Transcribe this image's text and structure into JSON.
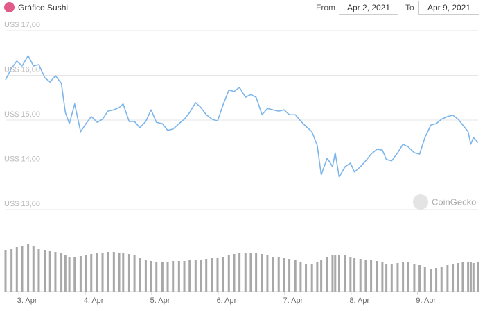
{
  "header": {
    "title": "Gráfico Sushi",
    "from_label": "From",
    "from": "Apr 2, 2021",
    "to_label": "To",
    "to": "Apr 9, 2021"
  },
  "chart_data": {
    "type": "line",
    "watermark": "CoinGecko",
    "x": [
      2.8,
      2.89,
      2.97,
      3.05,
      3.14,
      3.22,
      3.3,
      3.39,
      3.47,
      3.55,
      3.64,
      3.7,
      3.76,
      3.84,
      3.93,
      4.01,
      4.09,
      4.18,
      4.26,
      4.34,
      4.43,
      4.51,
      4.57,
      4.66,
      4.74,
      4.82,
      4.91,
      4.99,
      5.07,
      5.16,
      5.24,
      5.32,
      5.41,
      5.49,
      5.57,
      5.66,
      5.74,
      5.82,
      5.91,
      5.99,
      6.07,
      6.16,
      6.24,
      6.32,
      6.41,
      6.49,
      6.57,
      6.66,
      6.74,
      6.82,
      6.91,
      6.99,
      7.07,
      7.16,
      7.24,
      7.32,
      7.41,
      7.49,
      7.55,
      7.64,
      7.72,
      7.76,
      7.82,
      7.91,
      7.99,
      8.05,
      8.14,
      8.22,
      8.3,
      8.39,
      8.47,
      8.53,
      8.61,
      8.7,
      8.78,
      8.86,
      8.95,
      9.03,
      9.11,
      9.2,
      9.28,
      9.36,
      9.45,
      9.53,
      9.61,
      9.68,
      9.76,
      9.8,
      9.84,
      9.91
    ],
    "series": [
      {
        "color": "#7cb5ec",
        "values": [
          15.9,
          16.16,
          16.32,
          16.21,
          16.44,
          16.21,
          16.24,
          15.95,
          15.85,
          15.99,
          15.82,
          15.17,
          14.92,
          15.36,
          14.74,
          14.92,
          15.08,
          14.95,
          15.02,
          15.2,
          15.23,
          15.28,
          15.36,
          14.97,
          14.97,
          14.83,
          14.97,
          15.23,
          14.95,
          14.92,
          14.77,
          14.8,
          14.92,
          15.02,
          15.17,
          15.39,
          15.28,
          15.12,
          15.02,
          14.98,
          15.33,
          15.67,
          15.64,
          15.73,
          15.51,
          15.57,
          15.51,
          15.12,
          15.26,
          15.23,
          15.2,
          15.23,
          15.12,
          15.12,
          14.98,
          14.86,
          14.74,
          14.43,
          13.78,
          14.15,
          13.96,
          14.27,
          13.73,
          13.96,
          14.04,
          13.84,
          13.96,
          14.09,
          14.24,
          14.35,
          14.33,
          14.12,
          14.09,
          14.27,
          14.46,
          14.4,
          14.27,
          14.24,
          14.61,
          14.89,
          14.92,
          15.02,
          15.08,
          15.11,
          15.02,
          14.89,
          14.74,
          14.46,
          14.61,
          14.5
        ]
      },
      {
        "color": "#a8a8a8",
        "axis": "y2",
        "values": [
          60,
          62,
          64,
          66,
          68,
          65,
          62,
          60,
          58,
          57,
          55,
          52,
          50,
          50,
          51,
          52,
          54,
          55,
          56,
          57,
          57,
          56,
          55,
          54,
          52,
          48,
          45,
          44,
          43,
          43,
          43,
          44,
          44,
          44,
          45,
          45,
          46,
          47,
          48,
          48,
          50,
          52,
          54,
          55,
          56,
          56,
          55,
          54,
          52,
          50,
          50,
          49,
          47,
          45,
          42,
          40,
          40,
          42,
          45,
          50,
          52,
          53,
          53,
          52,
          50,
          48,
          47,
          46,
          45,
          44,
          42,
          40,
          40,
          41,
          42,
          42,
          40,
          38,
          35,
          33,
          34,
          36,
          38,
          40,
          41,
          42,
          42,
          42,
          41,
          42
        ]
      }
    ],
    "xlim": [
      2.8,
      9.91
    ],
    "xticks": [
      {
        "value": 3,
        "label": "3. Apr"
      },
      {
        "value": 4,
        "label": "4. Apr"
      },
      {
        "value": 5,
        "label": "5. Apr"
      },
      {
        "value": 6,
        "label": "6. Apr"
      },
      {
        "value": 7,
        "label": "7. Apr"
      },
      {
        "value": 8,
        "label": "8. Apr"
      },
      {
        "value": 9,
        "label": "9. Apr"
      }
    ],
    "ylim": [
      13,
      17
    ],
    "yticks": [
      {
        "value": 13,
        "label": "US$ 13,00"
      },
      {
        "value": 14,
        "label": "US$ 14,00"
      },
      {
        "value": 15,
        "label": "US$ 15,00"
      },
      {
        "value": 16,
        "label": "US$ 16,00"
      },
      {
        "value": 17,
        "label": "US$ 17,00"
      }
    ],
    "y2lim": [
      0,
      100
    ],
    "grid": true
  }
}
